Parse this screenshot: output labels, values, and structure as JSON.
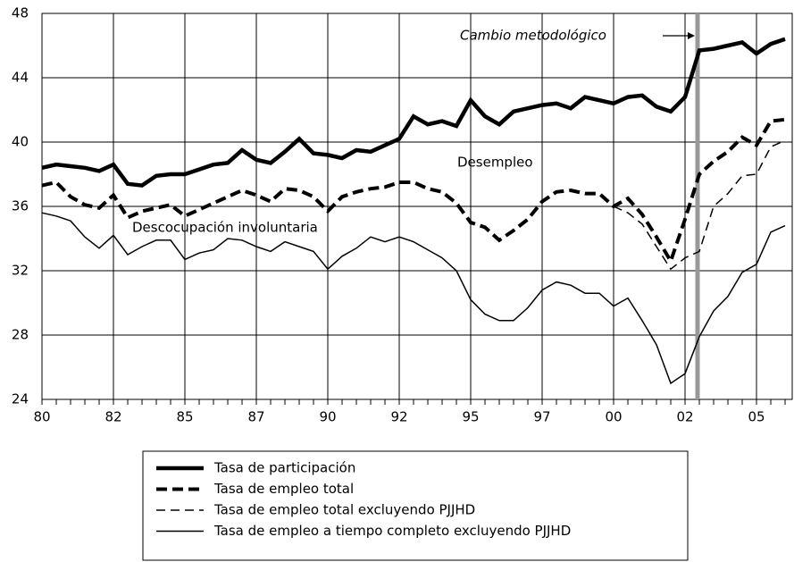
{
  "chart_data": {
    "type": "line",
    "categories": [
      "80",
      null,
      null,
      null,
      null,
      "82",
      null,
      null,
      null,
      null,
      "85",
      null,
      null,
      null,
      null,
      "87",
      null,
      null,
      null,
      null,
      "90",
      null,
      null,
      null,
      null,
      "92",
      null,
      null,
      null,
      null,
      "95",
      null,
      null,
      null,
      null,
      "97",
      null,
      null,
      null,
      null,
      "00",
      null,
      null,
      null,
      null,
      "02",
      null,
      null,
      null,
      null,
      "05",
      null,
      null
    ],
    "ylim": [
      24,
      48
    ],
    "yticks": [
      24,
      28,
      32,
      36,
      40,
      44,
      48
    ],
    "grid": true,
    "annotations": [
      "Cambio metodológico",
      "Desempleo",
      "Descocupación involuntaria"
    ],
    "series": [
      {
        "name": "Tasa de participación",
        "color": "#000000",
        "line_width": 4.5,
        "dashed": false,
        "values": [
          38.4,
          38.6,
          38.5,
          38.4,
          38.2,
          38.6,
          37.4,
          37.3,
          37.9,
          38.0,
          38.0,
          38.3,
          38.6,
          38.7,
          39.5,
          38.9,
          38.7,
          39.4,
          40.2,
          39.3,
          39.2,
          39.0,
          39.5,
          39.4,
          39.8,
          40.2,
          41.6,
          41.1,
          41.3,
          41.0,
          42.6,
          41.6,
          41.1,
          41.9,
          42.1,
          42.3,
          42.4,
          42.1,
          42.8,
          42.6,
          42.4,
          42.8,
          42.9,
          42.2,
          41.9,
          42.8,
          45.7,
          45.8,
          46.0,
          46.2,
          45.5,
          46.1,
          46.4
        ]
      },
      {
        "name": "Tasa de empleo total",
        "color": "#000000",
        "line_width": 4,
        "dashed": true,
        "values": [
          37.3,
          37.5,
          36.6,
          36.1,
          35.9,
          36.7,
          35.3,
          35.7,
          35.9,
          36.1,
          35.4,
          35.8,
          36.2,
          36.6,
          37.0,
          36.7,
          36.3,
          37.1,
          37.0,
          36.6,
          35.7,
          36.6,
          36.9,
          37.1,
          37.2,
          37.5,
          37.5,
          37.1,
          36.9,
          36.2,
          35.0,
          34.7,
          33.9,
          34.5,
          35.2,
          36.3,
          36.9,
          37.0,
          36.8,
          36.8,
          36.0,
          36.5,
          35.5,
          34.1,
          32.6,
          35.2,
          38.0,
          38.8,
          39.4,
          40.3,
          39.8,
          41.3,
          41.4
        ]
      },
      {
        "name": "Tasa de empleo total excluyendo PJJHD",
        "color": "#000000",
        "line_width": 1.5,
        "dashed": true,
        "values": [
          null,
          null,
          null,
          null,
          null,
          null,
          null,
          null,
          null,
          null,
          null,
          null,
          null,
          null,
          null,
          null,
          null,
          null,
          null,
          null,
          null,
          null,
          null,
          null,
          null,
          null,
          null,
          null,
          null,
          null,
          null,
          null,
          null,
          null,
          null,
          null,
          null,
          null,
          null,
          null,
          36.0,
          35.6,
          34.9,
          33.5,
          32.1,
          32.8,
          33.2,
          36.0,
          36.8,
          37.9,
          38.0,
          39.7,
          40.1
        ]
      },
      {
        "name": "Tasa de empleo a tiempo completo excluyendo PJJHD",
        "color": "#000000",
        "line_width": 1.5,
        "dashed": false,
        "values": [
          35.6,
          35.4,
          35.1,
          34.1,
          33.4,
          34.2,
          33.0,
          33.5,
          33.9,
          33.9,
          32.7,
          33.1,
          33.3,
          34.0,
          33.9,
          33.5,
          33.2,
          33.8,
          33.5,
          33.2,
          32.1,
          32.9,
          33.4,
          34.1,
          33.8,
          34.1,
          33.8,
          33.3,
          32.8,
          32.0,
          30.2,
          29.3,
          28.9,
          28.9,
          29.7,
          30.8,
          31.3,
          31.1,
          30.6,
          30.6,
          29.8,
          30.3,
          28.9,
          27.4,
          25.0,
          25.6,
          27.9,
          29.5,
          30.4,
          31.9,
          32.4,
          34.4,
          34.8
        ]
      }
    ]
  }
}
